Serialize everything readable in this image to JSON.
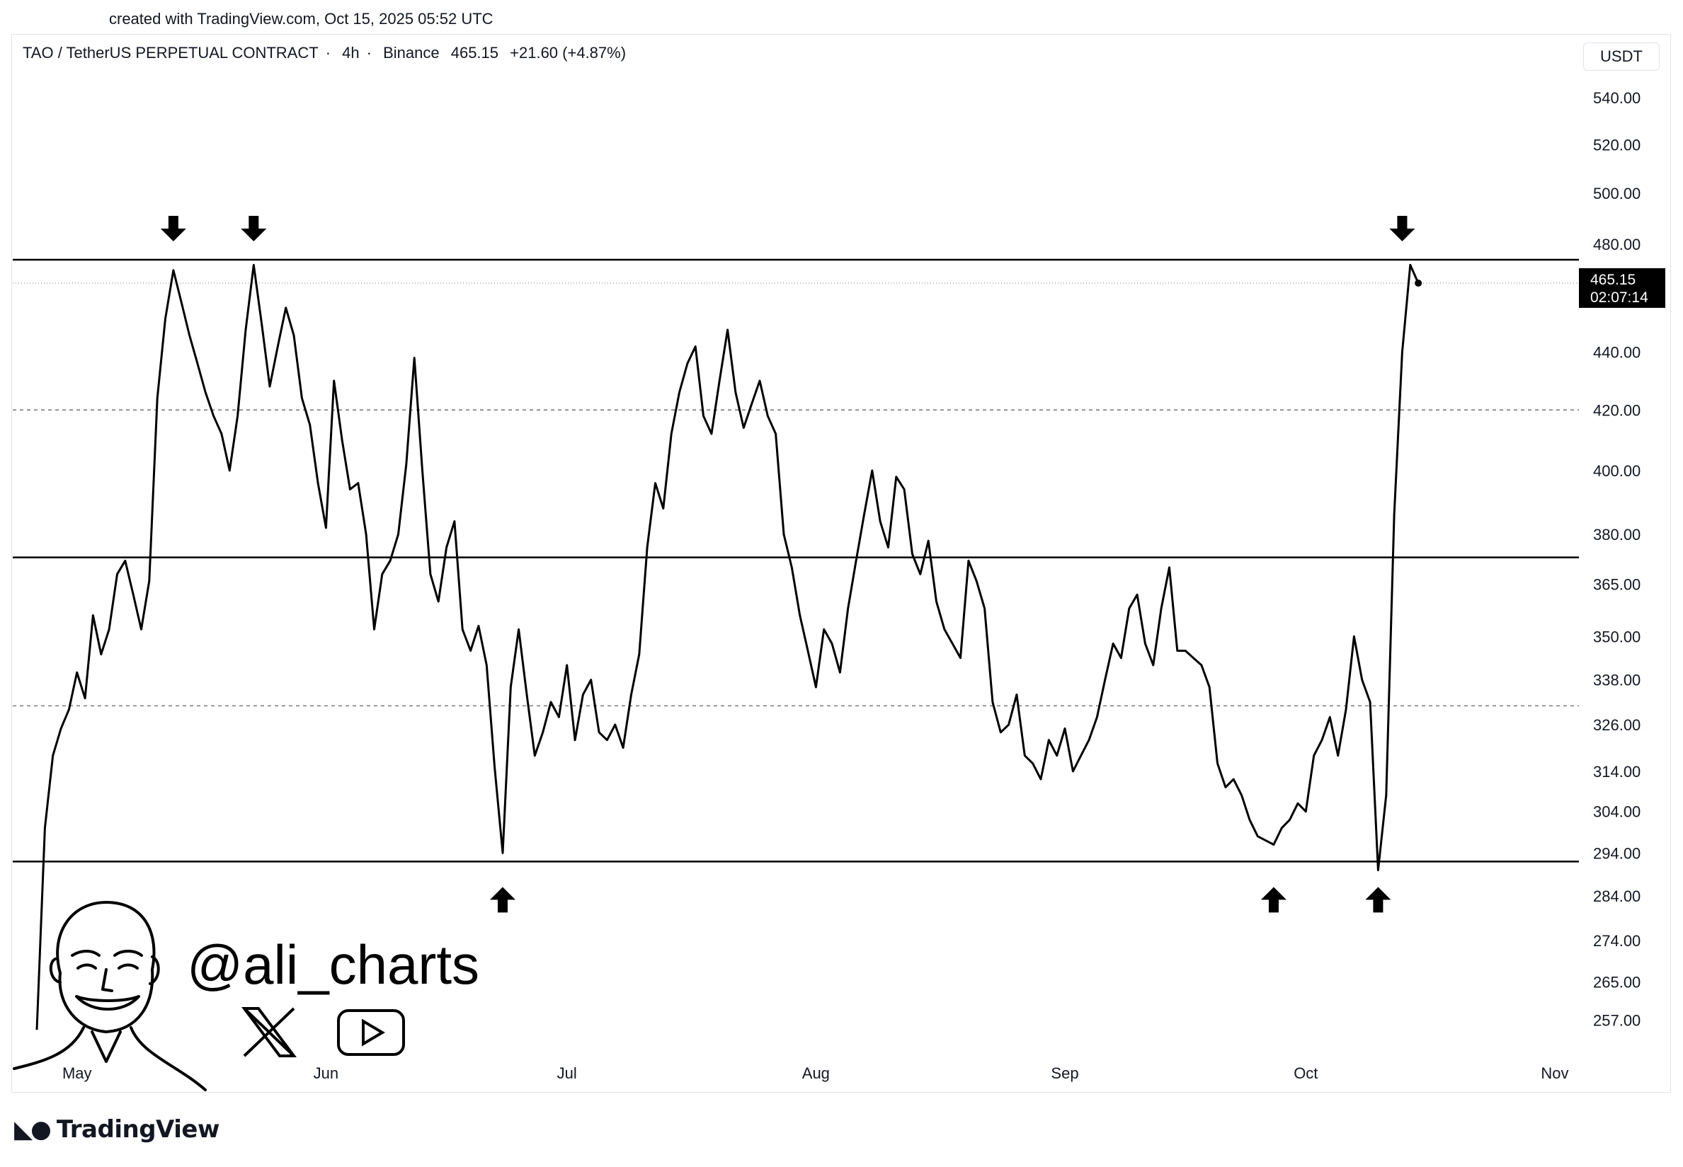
{
  "watermark": {
    "created_text": "created with TradingView.com, Oct 15, 2025 05:52 UTC"
  },
  "header": {
    "symbol": "TAO / TetherUS PERPETUAL CONTRACT",
    "interval": "4h",
    "exchange": "Binance",
    "price": "465.15",
    "change": "+21.60 (+4.87%)",
    "separator": "·"
  },
  "currency_button": "USDT",
  "price_label": {
    "price": "465.15",
    "countdown": "02:07:14"
  },
  "branding": {
    "handle": "@ali_charts",
    "platform": "TradingView",
    "social_icons": [
      "x-logo-icon",
      "youtube-icon"
    ]
  },
  "colors": {
    "line": "#000000",
    "background": "#ffffff",
    "grid": "#e0e3eb"
  },
  "chart_data": {
    "type": "line",
    "scale": "log",
    "ylim": [
      250,
      555
    ],
    "y_ticks": [
      540,
      520,
      500,
      480,
      440,
      420,
      400,
      380,
      365,
      350,
      338,
      326,
      314,
      304,
      294,
      284,
      274,
      265,
      257
    ],
    "y_tick_labels": [
      "540.00",
      "520.00",
      "500.00",
      "480.00",
      "440.00",
      "420.00",
      "400.00",
      "380.00",
      "365.00",
      "350.00",
      "338.00",
      "326.00",
      "314.00",
      "304.00",
      "294.00",
      "284.00",
      "274.00",
      "265.00",
      "257.00"
    ],
    "x_ticks": [
      "2025-05-01",
      "2025-06-01",
      "2025-07-01",
      "2025-08-01",
      "2025-09-01",
      "2025-10-01",
      "2025-11-01"
    ],
    "x_tick_labels": [
      "May",
      "Jun",
      "Jul",
      "Aug",
      "Sep",
      "Oct",
      "Nov"
    ],
    "xlim": [
      "2025-04-23",
      "2025-11-04"
    ],
    "levels": [
      {
        "value": 474,
        "style": "solid"
      },
      {
        "value": 373,
        "style": "solid"
      },
      {
        "value": 292,
        "style": "solid"
      },
      {
        "value": 420,
        "style": "dashed"
      },
      {
        "value": 331,
        "style": "dashed"
      },
      {
        "value": 465.15,
        "style": "dotted"
      }
    ],
    "arrows": [
      {
        "date": "2025-05-13",
        "direction": "down"
      },
      {
        "date": "2025-05-23",
        "direction": "down"
      },
      {
        "date": "2025-06-23",
        "direction": "up"
      },
      {
        "date": "2025-09-27",
        "direction": "up"
      },
      {
        "date": "2025-10-10",
        "direction": "up"
      },
      {
        "date": "2025-10-13",
        "direction": "down"
      }
    ],
    "series": [
      {
        "values": [
          [
            "2025-04-26",
            255
          ],
          [
            "2025-04-27",
            300
          ],
          [
            "2025-04-28",
            318
          ],
          [
            "2025-04-29",
            325
          ],
          [
            "2025-04-30",
            330
          ],
          [
            "2025-05-01",
            340
          ],
          [
            "2025-05-02",
            333
          ],
          [
            "2025-05-03",
            356
          ],
          [
            "2025-05-04",
            345
          ],
          [
            "2025-05-05",
            352
          ],
          [
            "2025-05-06",
            368
          ],
          [
            "2025-05-07",
            372
          ],
          [
            "2025-05-08",
            362
          ],
          [
            "2025-05-09",
            352
          ],
          [
            "2025-05-10",
            366
          ],
          [
            "2025-05-11",
            424
          ],
          [
            "2025-05-12",
            452
          ],
          [
            "2025-05-13",
            470
          ],
          [
            "2025-05-14",
            458
          ],
          [
            "2025-05-15",
            446
          ],
          [
            "2025-05-16",
            436
          ],
          [
            "2025-05-17",
            426
          ],
          [
            "2025-05-18",
            418
          ],
          [
            "2025-05-19",
            412
          ],
          [
            "2025-05-20",
            400
          ],
          [
            "2025-05-21",
            418
          ],
          [
            "2025-05-22",
            448
          ],
          [
            "2025-05-23",
            472
          ],
          [
            "2025-05-24",
            450
          ],
          [
            "2025-05-25",
            428
          ],
          [
            "2025-05-26",
            442
          ],
          [
            "2025-05-27",
            456
          ],
          [
            "2025-05-28",
            446
          ],
          [
            "2025-05-29",
            424
          ],
          [
            "2025-05-30",
            415
          ],
          [
            "2025-05-31",
            396
          ],
          [
            "2025-06-01",
            382
          ],
          [
            "2025-06-02",
            430
          ],
          [
            "2025-06-03",
            410
          ],
          [
            "2025-06-04",
            394
          ],
          [
            "2025-06-05",
            396
          ],
          [
            "2025-06-06",
            380
          ],
          [
            "2025-06-07",
            352
          ],
          [
            "2025-06-08",
            368
          ],
          [
            "2025-06-09",
            372
          ],
          [
            "2025-06-10",
            380
          ],
          [
            "2025-06-11",
            402
          ],
          [
            "2025-06-12",
            438
          ],
          [
            "2025-06-13",
            400
          ],
          [
            "2025-06-14",
            368
          ],
          [
            "2025-06-15",
            360
          ],
          [
            "2025-06-16",
            376
          ],
          [
            "2025-06-17",
            384
          ],
          [
            "2025-06-18",
            352
          ],
          [
            "2025-06-19",
            346
          ],
          [
            "2025-06-20",
            353
          ],
          [
            "2025-06-21",
            342
          ],
          [
            "2025-06-22",
            315
          ],
          [
            "2025-06-23",
            294
          ],
          [
            "2025-06-24",
            336
          ],
          [
            "2025-06-25",
            352
          ],
          [
            "2025-06-26",
            334
          ],
          [
            "2025-06-27",
            318
          ],
          [
            "2025-06-28",
            324
          ],
          [
            "2025-06-29",
            332
          ],
          [
            "2025-06-30",
            328
          ],
          [
            "2025-07-01",
            342
          ],
          [
            "2025-07-02",
            322
          ],
          [
            "2025-07-03",
            334
          ],
          [
            "2025-07-04",
            338
          ],
          [
            "2025-07-05",
            324
          ],
          [
            "2025-07-06",
            322
          ],
          [
            "2025-07-07",
            326
          ],
          [
            "2025-07-08",
            320
          ],
          [
            "2025-07-09",
            334
          ],
          [
            "2025-07-10",
            345
          ],
          [
            "2025-07-11",
            376
          ],
          [
            "2025-07-12",
            396
          ],
          [
            "2025-07-13",
            388
          ],
          [
            "2025-07-14",
            412
          ],
          [
            "2025-07-15",
            426
          ],
          [
            "2025-07-16",
            436
          ],
          [
            "2025-07-17",
            442
          ],
          [
            "2025-07-18",
            418
          ],
          [
            "2025-07-19",
            412
          ],
          [
            "2025-07-20",
            430
          ],
          [
            "2025-07-21",
            448
          ],
          [
            "2025-07-22",
            426
          ],
          [
            "2025-07-23",
            414
          ],
          [
            "2025-07-24",
            422
          ],
          [
            "2025-07-25",
            430
          ],
          [
            "2025-07-26",
            418
          ],
          [
            "2025-07-27",
            412
          ],
          [
            "2025-07-28",
            380
          ],
          [
            "2025-07-29",
            370
          ],
          [
            "2025-07-30",
            356
          ],
          [
            "2025-07-31",
            346
          ],
          [
            "2025-08-01",
            336
          ],
          [
            "2025-08-02",
            352
          ],
          [
            "2025-08-03",
            348
          ],
          [
            "2025-08-04",
            340
          ],
          [
            "2025-08-05",
            358
          ],
          [
            "2025-08-06",
            372
          ],
          [
            "2025-08-07",
            386
          ],
          [
            "2025-08-08",
            400
          ],
          [
            "2025-08-09",
            384
          ],
          [
            "2025-08-10",
            376
          ],
          [
            "2025-08-11",
            398
          ],
          [
            "2025-08-12",
            394
          ],
          [
            "2025-08-13",
            374
          ],
          [
            "2025-08-14",
            368
          ],
          [
            "2025-08-15",
            378
          ],
          [
            "2025-08-16",
            360
          ],
          [
            "2025-08-17",
            352
          ],
          [
            "2025-08-18",
            348
          ],
          [
            "2025-08-19",
            344
          ],
          [
            "2025-08-20",
            372
          ],
          [
            "2025-08-21",
            366
          ],
          [
            "2025-08-22",
            358
          ],
          [
            "2025-08-23",
            332
          ],
          [
            "2025-08-24",
            324
          ],
          [
            "2025-08-25",
            326
          ],
          [
            "2025-08-26",
            334
          ],
          [
            "2025-08-27",
            318
          ],
          [
            "2025-08-28",
            316
          ],
          [
            "2025-08-29",
            312
          ],
          [
            "2025-08-30",
            322
          ],
          [
            "2025-08-31",
            318
          ],
          [
            "2025-09-01",
            325
          ],
          [
            "2025-09-02",
            314
          ],
          [
            "2025-09-03",
            318
          ],
          [
            "2025-09-04",
            322
          ],
          [
            "2025-09-05",
            328
          ],
          [
            "2025-09-06",
            338
          ],
          [
            "2025-09-07",
            348
          ],
          [
            "2025-09-08",
            344
          ],
          [
            "2025-09-09",
            358
          ],
          [
            "2025-09-10",
            362
          ],
          [
            "2025-09-11",
            348
          ],
          [
            "2025-09-12",
            342
          ],
          [
            "2025-09-13",
            358
          ],
          [
            "2025-09-14",
            370
          ],
          [
            "2025-09-15",
            346
          ],
          [
            "2025-09-16",
            346
          ],
          [
            "2025-09-17",
            344
          ],
          [
            "2025-09-18",
            342
          ],
          [
            "2025-09-19",
            336
          ],
          [
            "2025-09-20",
            316
          ],
          [
            "2025-09-21",
            310
          ],
          [
            "2025-09-22",
            312
          ],
          [
            "2025-09-23",
            308
          ],
          [
            "2025-09-24",
            302
          ],
          [
            "2025-09-25",
            298
          ],
          [
            "2025-09-26",
            297
          ],
          [
            "2025-09-27",
            296
          ],
          [
            "2025-09-28",
            300
          ],
          [
            "2025-09-29",
            302
          ],
          [
            "2025-09-30",
            306
          ],
          [
            "2025-10-01",
            304
          ],
          [
            "2025-10-02",
            318
          ],
          [
            "2025-10-03",
            322
          ],
          [
            "2025-10-04",
            328
          ],
          [
            "2025-10-05",
            318
          ],
          [
            "2025-10-06",
            330
          ],
          [
            "2025-10-07",
            350
          ],
          [
            "2025-10-08",
            338
          ],
          [
            "2025-10-09",
            332
          ],
          [
            "2025-10-10",
            290
          ],
          [
            "2025-10-11",
            308
          ],
          [
            "2025-10-12",
            386
          ],
          [
            "2025-10-13",
            440
          ],
          [
            "2025-10-14",
            472
          ],
          [
            "2025-10-15",
            465.15
          ]
        ]
      }
    ]
  }
}
